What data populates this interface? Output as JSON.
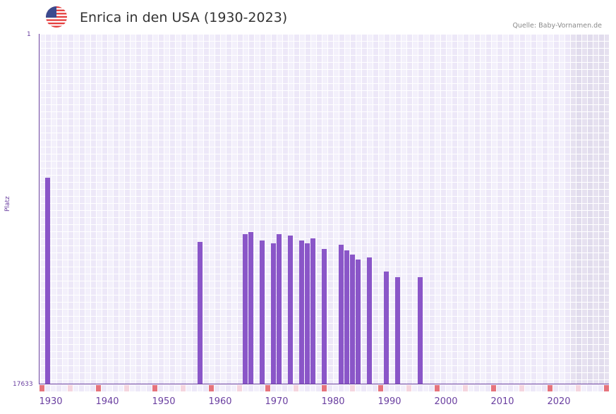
{
  "header": {
    "flag_icon": "us-flag-icon",
    "title": "Enrica in den USA (1930-2023)",
    "source": "Quelle: Baby-Vornamen.de"
  },
  "chart_data": {
    "type": "bar",
    "title": "Enrica in den USA (1930-2023)",
    "xlabel": "",
    "ylabel": "Platz",
    "y_axis_inverted": true,
    "ylim": [
      17633,
      1
    ],
    "y_tick_labels": [
      "1",
      "17633"
    ],
    "x_tick_labels": [
      "1930",
      "1940",
      "1950",
      "1960",
      "1970",
      "1980",
      "1990",
      "2000",
      "2010",
      "2020"
    ],
    "grid": true,
    "legend": null,
    "series": [
      {
        "name": "Platz",
        "color": "#8a56c8",
        "x": [
          1930,
          1957,
          1965,
          1966,
          1968,
          1970,
          1971,
          1973,
          1975,
          1976,
          1977,
          1979,
          1982,
          1983,
          1984,
          1985,
          1987,
          1990,
          1992,
          1996
        ],
        "values": [
          7240,
          10470,
          10080,
          9970,
          10400,
          10540,
          10080,
          10150,
          10400,
          10540,
          10290,
          10830,
          10610,
          10900,
          11110,
          11360,
          11250,
          11970,
          12250,
          12250
        ]
      }
    ],
    "shaded_region": {
      "from": 2023,
      "to": 2029,
      "color": "#e2dced"
    }
  },
  "colors": {
    "accent": "#6a3fa0",
    "bar": "#8a56c8",
    "marker_strong": "#e5737c",
    "marker_light": "#f5d5df"
  }
}
